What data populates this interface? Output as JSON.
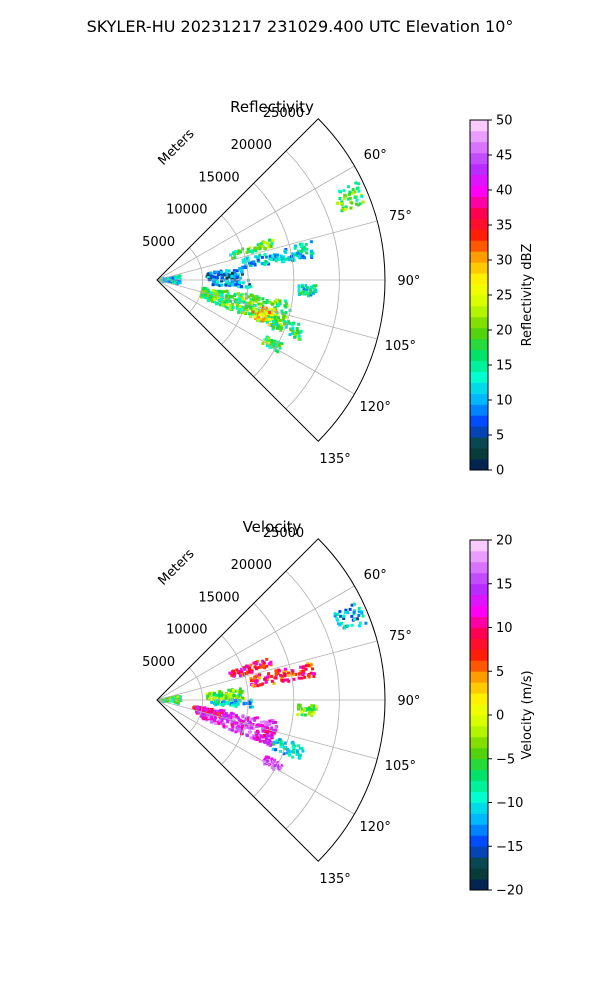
{
  "suptitle": "SKYLER-HU  20231217  231029.400 UTC Elevation 10°",
  "chart_data": [
    {
      "type": "heatmap",
      "projection": "polar-sector",
      "title": "Reflectivity",
      "radial_label": "Meters",
      "radial_ticks": [
        "5000",
        "10000",
        "15000",
        "20000",
        "25000"
      ],
      "radial_tick_values": [
        5000,
        10000,
        15000,
        20000,
        25000
      ],
      "rlim": [
        0,
        25000
      ],
      "azimuth_range": [
        45,
        135
      ],
      "azimuth_ticks": [
        "60°",
        "75°",
        "90°",
        "105°",
        "120°",
        "135°"
      ],
      "azimuth_tick_values": [
        60,
        75,
        90,
        105,
        120,
        135
      ],
      "grid": true,
      "colorbar": {
        "label": "Reflectivity dBZ",
        "ticks": [
          "0",
          "5",
          "10",
          "15",
          "20",
          "25",
          "30",
          "35",
          "40",
          "45",
          "50"
        ],
        "range": [
          0,
          50
        ],
        "stops": [
          "#001a5a",
          "#0b4a2e",
          "#0040ff",
          "#00b4ff",
          "#00ffd0",
          "#00e060",
          "#60d000",
          "#c8ff00",
          "#ffff00",
          "#ffb000",
          "#ff2000",
          "#ff0050",
          "#ff00ff",
          "#b030ff",
          "#e080ff",
          "#ffe0ff"
        ]
      },
      "echo_regions": [
        {
          "az": [
            64,
            70
          ],
          "r": [
            21500,
            24500
          ],
          "value": 18
        },
        {
          "az": [
            70,
            74
          ],
          "r": [
            8500,
            13500
          ],
          "value": 18
        },
        {
          "az": [
            76,
            82
          ],
          "r": [
            9500,
            17500
          ],
          "value": 12
        },
        {
          "az": [
            82,
            90
          ],
          "r": [
            5500,
            9500
          ],
          "value": 8
        },
        {
          "az": [
            90,
            95
          ],
          "r": [
            6000,
            10500
          ],
          "value": 10
        },
        {
          "az": [
            92,
            96
          ],
          "r": [
            15500,
            17500
          ],
          "value": 14
        },
        {
          "az": [
            80,
            100
          ],
          "r": [
            300,
            2600
          ],
          "value": 12
        },
        {
          "az": [
            99,
            112
          ],
          "r": [
            5000,
            15000
          ],
          "value": 18
        },
        {
          "az": [
            104,
            112
          ],
          "r": [
            11000,
            13500
          ],
          "value": 28
        },
        {
          "az": [
            107,
            113
          ],
          "r": [
            13500,
            17000
          ],
          "value": 16
        },
        {
          "az": [
            117,
            121
          ],
          "r": [
            13500,
            15500
          ],
          "value": 18
        }
      ]
    },
    {
      "type": "heatmap",
      "projection": "polar-sector",
      "title": "Velocity",
      "radial_label": "Meters",
      "radial_ticks": [
        "5000",
        "10000",
        "15000",
        "20000",
        "25000"
      ],
      "radial_tick_values": [
        5000,
        10000,
        15000,
        20000,
        25000
      ],
      "rlim": [
        0,
        25000
      ],
      "azimuth_range": [
        45,
        135
      ],
      "azimuth_ticks": [
        "60°",
        "75°",
        "90°",
        "105°",
        "120°",
        "135°"
      ],
      "azimuth_tick_values": [
        60,
        75,
        90,
        105,
        120,
        135
      ],
      "grid": true,
      "colorbar": {
        "label": "Velocity (m/s)",
        "ticks": [
          "−20",
          "−15",
          "−10",
          "−5",
          "0",
          "5",
          "10",
          "15",
          "20"
        ],
        "range": [
          -20,
          20
        ],
        "stops": [
          "#001a5a",
          "#0b4a2e",
          "#0040ff",
          "#00b4ff",
          "#00ffd0",
          "#00e060",
          "#60d000",
          "#c8ff00",
          "#ffff00",
          "#ffb000",
          "#ff2000",
          "#ff0050",
          "#ff00ff",
          "#b030ff",
          "#e080ff",
          "#ffe0ff"
        ]
      },
      "echo_regions": [
        {
          "az": [
            64,
            70
          ],
          "r": [
            21500,
            24500
          ],
          "value": -12
        },
        {
          "az": [
            69,
            74
          ],
          "r": [
            8500,
            13500
          ],
          "value": 9
        },
        {
          "az": [
            76,
            82
          ],
          "r": [
            10500,
            17500
          ],
          "value": 8
        },
        {
          "az": [
            82,
            90
          ],
          "r": [
            5500,
            9500
          ],
          "value": -4
        },
        {
          "az": [
            90,
            95
          ],
          "r": [
            6000,
            10500
          ],
          "value": -10
        },
        {
          "az": [
            92,
            96
          ],
          "r": [
            15500,
            17500
          ],
          "value": -4
        },
        {
          "az": [
            80,
            100
          ],
          "r": [
            300,
            2600
          ],
          "value": -6
        },
        {
          "az": [
            100,
            112
          ],
          "r": [
            4500,
            13500
          ],
          "value": 14
        },
        {
          "az": [
            99,
            104
          ],
          "r": [
            4000,
            7500
          ],
          "value": 10
        },
        {
          "az": [
            104,
            112
          ],
          "r": [
            11000,
            13500
          ],
          "value": 12
        },
        {
          "az": [
            107,
            113
          ],
          "r": [
            13500,
            17000
          ],
          "value": -10
        },
        {
          "az": [
            117,
            121
          ],
          "r": [
            13500,
            15500
          ],
          "value": 15
        }
      ]
    }
  ]
}
